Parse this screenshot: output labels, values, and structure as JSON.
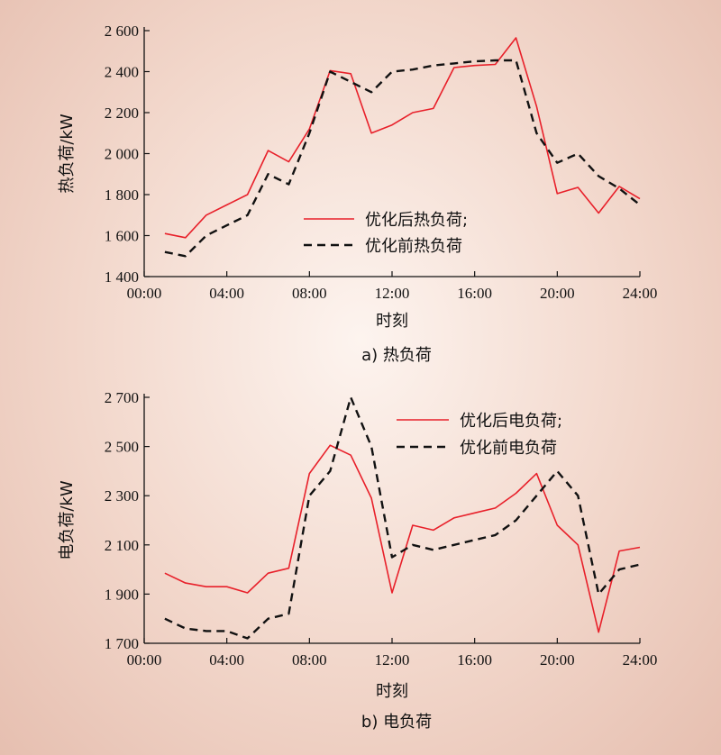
{
  "chart_data": [
    {
      "type": "line",
      "caption": "a) 热负荷",
      "xlabel": "时刻",
      "ylabel": "热负荷/kW",
      "ylim": [
        1400,
        2600
      ],
      "yticks": [
        1400,
        1600,
        1800,
        2000,
        2200,
        2400,
        2600
      ],
      "ytick_labels": [
        "1 400",
        "1 600",
        "1 800",
        "2 000",
        "2 200",
        "2 400",
        "2 600"
      ],
      "xlim": [
        0,
        24
      ],
      "xticks": [
        0,
        4,
        8,
        12,
        16,
        20,
        24
      ],
      "xtick_labels": [
        "00:00",
        "04:00",
        "08:00",
        "12:00",
        "16:00",
        "20:00",
        "24:00"
      ],
      "legend_position": "center-right",
      "x": [
        1,
        2,
        3,
        4,
        5,
        6,
        7,
        8,
        9,
        10,
        11,
        12,
        13,
        14,
        15,
        16,
        17,
        18,
        19,
        20,
        21,
        22,
        23,
        24
      ],
      "series": [
        {
          "name": "优化后热负荷;",
          "color": "#e8202a",
          "style": "solid",
          "values": [
            1610,
            1590,
            1700,
            1750,
            1800,
            2015,
            1960,
            2120,
            2405,
            2390,
            2100,
            2140,
            2200,
            2220,
            2420,
            2430,
            2435,
            2565,
            2230,
            1805,
            1835,
            1710,
            1840,
            1780
          ]
        },
        {
          "name": "优化前热负荷",
          "color": "#111111",
          "style": "dashed",
          "values": [
            1520,
            1500,
            1600,
            1650,
            1700,
            1900,
            1850,
            2100,
            2400,
            2350,
            2300,
            2400,
            2410,
            2430,
            2440,
            2450,
            2455,
            2455,
            2100,
            1955,
            2000,
            1890,
            1830,
            1750
          ]
        }
      ]
    },
    {
      "type": "line",
      "caption": "b) 电负荷",
      "xlabel": "时刻",
      "ylabel": "电负荷/kW",
      "ylim": [
        1700,
        2700
      ],
      "yticks": [
        1700,
        1900,
        2100,
        2300,
        2500,
        2700
      ],
      "ytick_labels": [
        "1 700",
        "1 900",
        "2 100",
        "2 300",
        "2 500",
        "2 700"
      ],
      "xlim": [
        0,
        24
      ],
      "xticks": [
        0,
        4,
        8,
        12,
        16,
        20,
        24
      ],
      "xtick_labels": [
        "00:00",
        "04:00",
        "08:00",
        "12:00",
        "16:00",
        "20:00",
        "24:00"
      ],
      "legend_position": "top-right",
      "x": [
        1,
        2,
        3,
        4,
        5,
        6,
        7,
        8,
        9,
        10,
        11,
        12,
        13,
        14,
        15,
        16,
        17,
        18,
        19,
        20,
        21,
        22,
        23,
        24
      ],
      "series": [
        {
          "name": "优化后电负荷;",
          "color": "#e8202a",
          "style": "solid",
          "values": [
            1985,
            1945,
            1930,
            1930,
            1905,
            1985,
            2005,
            2390,
            2505,
            2465,
            2290,
            1905,
            2180,
            2160,
            2210,
            2230,
            2250,
            2310,
            2390,
            2180,
            2100,
            1745,
            2075,
            2090
          ]
        },
        {
          "name": "优化前电负荷",
          "color": "#111111",
          "style": "dashed",
          "values": [
            1800,
            1760,
            1750,
            1750,
            1720,
            1800,
            1820,
            2300,
            2400,
            2700,
            2500,
            2050,
            2100,
            2080,
            2100,
            2120,
            2140,
            2200,
            2300,
            2400,
            2300,
            1900,
            2000,
            2020
          ]
        }
      ]
    }
  ]
}
